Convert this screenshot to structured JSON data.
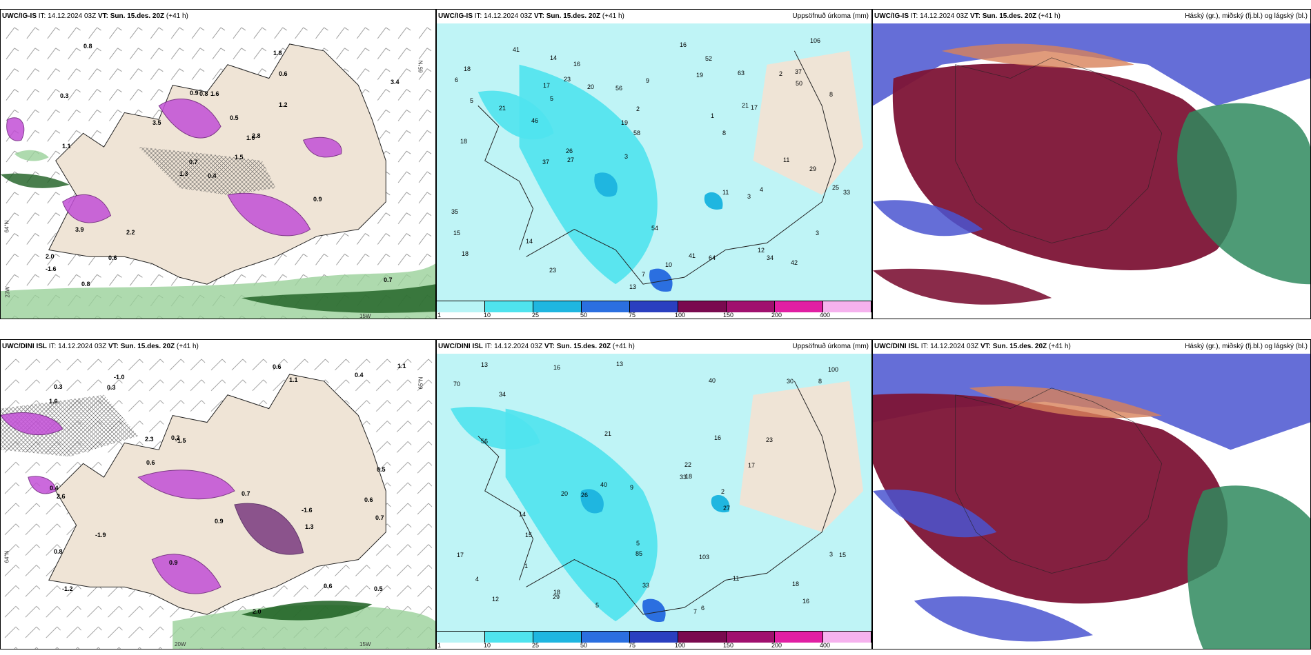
{
  "panels": [
    {
      "model": "UWC/IG-IS",
      "it": "14.12.2024 03Z",
      "vt": "Sun. 15.des. 20Z",
      "lead": "(+41 h)",
      "title_right": "",
      "it_prefix": "IT:",
      "vt_prefix": "VT:"
    },
    {
      "model": "UWC/IG-IS",
      "it": "14.12.2024 03Z",
      "vt": "Sun. 15.des. 20Z",
      "lead": "(+41 h)",
      "title_right": "Uppsöfnuð úrkoma (mm)",
      "it_prefix": "IT:",
      "vt_prefix": "VT:"
    },
    {
      "model": "UWC/IG-IS",
      "it": "14.12.2024 03Z",
      "vt": "Sun. 15.des. 20Z",
      "lead": "(+41 h)",
      "title_right": "Háský (gr.), miðský (fj.bl.) og lágský (bl.)",
      "it_prefix": "IT:",
      "vt_prefix": "VT:"
    },
    {
      "model": "UWC/DINI ISL",
      "it": "14.12.2024 03Z",
      "vt": "Sun. 15.des. 20Z",
      "lead": "(+41 h)",
      "title_right": "",
      "it_prefix": "IT:",
      "vt_prefix": "VT:"
    },
    {
      "model": "UWC/DINI ISL",
      "it": "14.12.2024 03Z",
      "vt": "Sun. 15.des. 20Z",
      "lead": "(+41 h)",
      "title_right": "Uppsöfnuð úrkoma (mm)",
      "it_prefix": "IT:",
      "vt_prefix": "VT:"
    },
    {
      "model": "UWC/DINI ISL",
      "it": "14.12.2024 03Z",
      "vt": "Sun. 15.des. 20Z",
      "lead": "(+41 h)",
      "title_right": "Háský (gr.), miðský (fj.bl.) og lágský (bl.)",
      "it_prefix": "IT:",
      "vt_prefix": "VT:"
    }
  ],
  "precip_legend": {
    "labels": [
      "1",
      "10",
      "25",
      "50",
      "75",
      "100",
      "150",
      "200",
      "400"
    ],
    "colors": [
      "#b8f4f6",
      "#4fe3ee",
      "#1fb6e0",
      "#2b6fe0",
      "#2a3fc0",
      "#7a0a4f",
      "#a0106e",
      "#e11fa3",
      "#f6b2ee"
    ]
  },
  "axis_labels": {
    "lat65": "65°N",
    "lat64": "64°N",
    "lon20": "20W",
    "lon15": "15W",
    "lon23": "23W"
  },
  "colors": {
    "land": "#efe4d6",
    "sea_precip": "#bff4f6",
    "temp_purple": "#c24fd6",
    "green_dark": "#1b5e20",
    "green_light": "#9ad19a",
    "cloud_maroon": "#7d1436",
    "cloud_blue": "#4a55d0",
    "cloud_green": "#2f8a5e",
    "cloud_orange": "#d8825a"
  },
  "temp_labels_ig": [
    "0.4",
    "0.3",
    "0.7",
    "2.0",
    "1.0",
    "2.2",
    "1.8",
    "1.6",
    "0.6",
    "1.5",
    "0.8",
    "0.7",
    "1.1",
    "3.4",
    "1.3",
    "1.2",
    "0.8",
    "0.9",
    "0.5",
    "3.9",
    "3.5",
    "-1.6",
    "0.6",
    "0.8",
    "2.8",
    "0.9"
  ],
  "temp_labels_dini": [
    "-1.6",
    "0.6",
    "-1.2",
    "-1.0",
    "-1.5",
    "0.6",
    "0.8",
    "1.1",
    "2.3",
    "2.0",
    "1.6",
    "0.4",
    "0.3",
    "0.5",
    "0.9",
    "0.5",
    "0.9",
    "0.7",
    "0.2",
    "-1.9",
    "1.1",
    "0.4",
    "0.6",
    "0.7",
    "0.6",
    "0.3",
    "1.3",
    "2.6"
  ],
  "precip_values_ig": [
    "5",
    "5",
    "8",
    "7",
    "2",
    "13",
    "11",
    "27",
    "37",
    "33",
    "25",
    "23",
    "21",
    "14",
    "18",
    "23",
    "26",
    "56",
    "42",
    "41",
    "34",
    "29",
    "58",
    "54",
    "63",
    "46",
    "50",
    "52",
    "41",
    "37",
    "35",
    "64",
    "106",
    "21",
    "18",
    "14",
    "20",
    "19",
    "16",
    "15",
    "17",
    "17",
    "19",
    "12",
    "10",
    "8",
    "6",
    "11",
    "3",
    "4",
    "2",
    "1",
    "3",
    "3",
    "9",
    "16",
    "18"
  ],
  "precip_values_dini": [
    "5",
    "7",
    "18",
    "11",
    "16",
    "34",
    "20",
    "16",
    "13",
    "21",
    "30",
    "33",
    "40",
    "85",
    "40",
    "33",
    "56",
    "29",
    "26",
    "70",
    "103",
    "100",
    "22",
    "12",
    "23",
    "14",
    "17",
    "15",
    "13",
    "27",
    "9",
    "6",
    "5",
    "8",
    "1",
    "2",
    "3",
    "4",
    "16",
    "18",
    "18",
    "17",
    "15"
  ]
}
